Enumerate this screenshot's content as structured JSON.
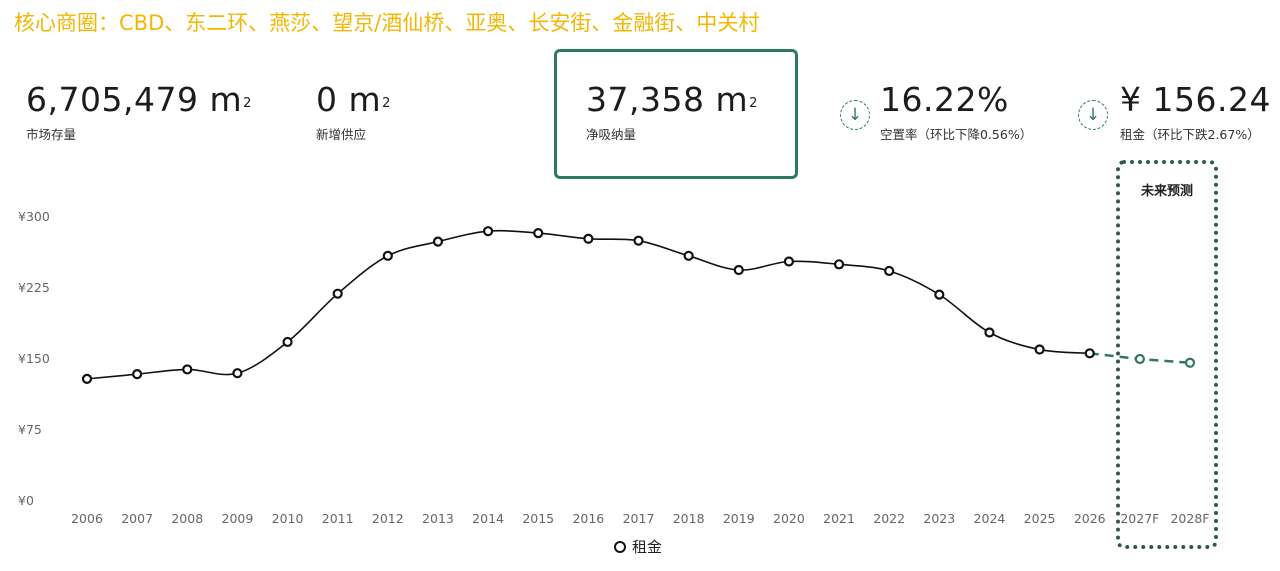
{
  "headline": "核心商圈：CBD、东二环、燕莎、望京/酒仙桥、亚奥、长安街、金融街、中关村",
  "kpis": [
    {
      "value": "6,705,479",
      "unit": "m",
      "sup": "2",
      "label": "市场存量"
    },
    {
      "value": "0",
      "unit": "m",
      "sup": "2",
      "label": "新增供应"
    },
    {
      "value": "37,358",
      "unit": "m",
      "sup": "2",
      "label": "净吸纳量"
    },
    {
      "value": "16.22%",
      "label": "空置率（环比下降0.56%）",
      "icon": "arrow-down-icon"
    },
    {
      "value": "¥ 156.24",
      "label": "租金（环比下跌2.67%）",
      "icon": "arrow-down-icon"
    }
  ],
  "forecast_label": "未来预测",
  "colors": {
    "headline": "#f2b705",
    "accent": "#2f7a5a",
    "line": "#111111"
  },
  "chart_data": {
    "type": "line",
    "categories": [
      "2006",
      "2007",
      "2008",
      "2009",
      "2010",
      "2011",
      "2012",
      "2013",
      "2014",
      "2015",
      "2016",
      "2017",
      "2018",
      "2019",
      "2020",
      "2021",
      "2022",
      "2023",
      "2024",
      "2025",
      "2026",
      "2027F",
      "2028F"
    ],
    "y_ticks": [
      "¥0",
      "¥75",
      "¥150",
      "¥225",
      "¥300"
    ],
    "ylim": [
      0,
      300
    ],
    "series": [
      {
        "name": "租金",
        "values": [
          129,
          134,
          139,
          135,
          168,
          219,
          259,
          274,
          285,
          283,
          277,
          275,
          259,
          244,
          253,
          250,
          243,
          218,
          178,
          160,
          156,
          150,
          146
        ],
        "forecast_from_index": 20
      }
    ],
    "grid": false,
    "legend": "bottom-center"
  }
}
